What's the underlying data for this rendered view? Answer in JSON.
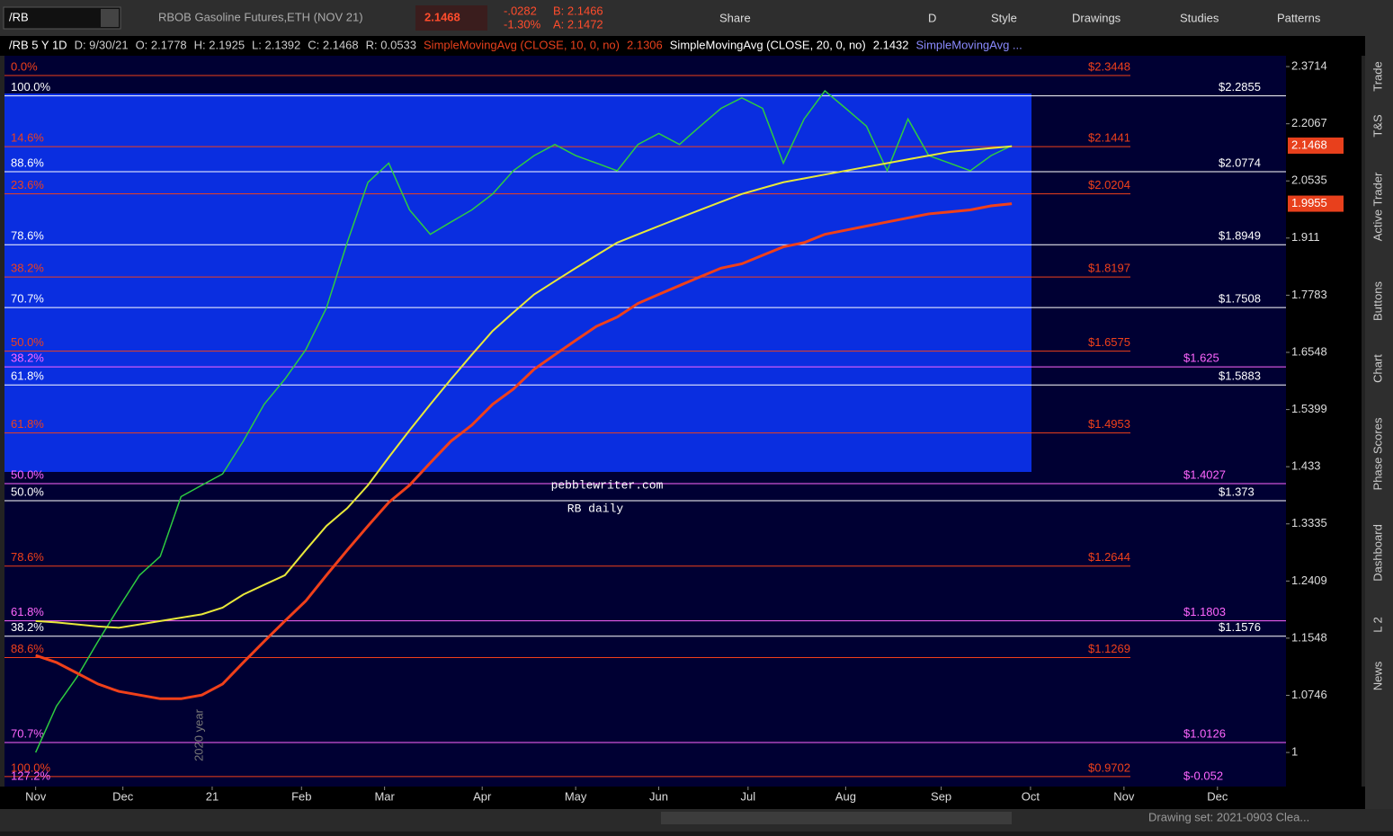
{
  "toolbar": {
    "symbol": "/RB",
    "description": "RBOB Gasoline Futures,ETH (NOV 21)",
    "last": "2.1468",
    "change": "-.0282",
    "change_pct": "-1.30%",
    "bid": "B: 2.1466",
    "ask": "A: 2.1472",
    "buttons": [
      "Share",
      "D",
      "Style",
      "Drawings",
      "Studies",
      "Patterns"
    ]
  },
  "info_bar": [
    {
      "text": "/RB 5 Y 1D",
      "color": "#ffffff"
    },
    {
      "text": "D: 9/30/21",
      "color": "#cccccc"
    },
    {
      "text": "O: 2.1778",
      "color": "#cccccc"
    },
    {
      "text": "H: 2.1925",
      "color": "#cccccc"
    },
    {
      "text": "L: 2.1392",
      "color": "#cccccc"
    },
    {
      "text": "C: 2.1468",
      "color": "#cccccc"
    },
    {
      "text": "R: 0.0533",
      "color": "#cccccc"
    },
    {
      "text": "SimpleMovingAvg (CLOSE, 10, 0, no)",
      "color": "#e8401c"
    },
    {
      "text": "2.1306",
      "color": "#e8401c"
    },
    {
      "text": "SimpleMovingAvg (CLOSE, 20, 0, no)",
      "color": "#ffffff"
    },
    {
      "text": "2.1432",
      "color": "#ffffff"
    },
    {
      "text": "SimpleMovingAvg ...",
      "color": "#8a8aff"
    }
  ],
  "sidebar": [
    "Trade",
    "T&S",
    "Active Trader",
    "Buttons",
    "Chart",
    "Phase Scores",
    "Dashboard",
    "L 2",
    "News"
  ],
  "status_bar": "Drawing set: 2021-0903 Clea...",
  "chart_data": {
    "type": "line",
    "log_scale": true,
    "x": [
      0,
      1,
      2,
      3,
      4,
      5,
      6,
      7,
      8,
      9,
      10,
      11,
      12,
      13,
      14,
      15,
      16,
      17,
      18,
      19,
      20,
      21,
      22,
      23,
      24,
      25,
      26,
      27,
      28,
      29,
      30,
      31,
      32,
      33,
      34,
      35,
      36,
      37,
      38,
      39,
      40,
      41,
      42,
      43,
      44,
      45,
      46,
      47
    ],
    "series": [
      {
        "color": "#2ecc40",
        "width": 1.5,
        "values": [
          1.0,
          1.06,
          1.1,
          1.15,
          1.2,
          1.25,
          1.28,
          1.38,
          1.4,
          1.42,
          1.48,
          1.55,
          1.6,
          1.66,
          1.75,
          1.9,
          2.05,
          2.1,
          1.98,
          1.92,
          1.95,
          1.98,
          2.02,
          2.08,
          2.12,
          2.15,
          2.12,
          2.1,
          2.08,
          2.15,
          2.18,
          2.15,
          2.2,
          2.25,
          2.28,
          2.25,
          2.1,
          2.22,
          2.3,
          2.25,
          2.2,
          2.08,
          2.22,
          2.12,
          2.1,
          2.08,
          2.12,
          2.1468
        ]
      },
      {
        "color": "#e8e83a",
        "width": 2,
        "values": [
          1.18,
          1.178,
          1.175,
          1.172,
          1.17,
          1.175,
          1.18,
          1.185,
          1.19,
          1.2,
          1.22,
          1.235,
          1.25,
          1.29,
          1.33,
          1.36,
          1.4,
          1.45,
          1.5,
          1.55,
          1.6,
          1.65,
          1.7,
          1.74,
          1.78,
          1.81,
          1.84,
          1.87,
          1.9,
          1.92,
          1.94,
          1.96,
          1.98,
          2.0,
          2.02,
          2.035,
          2.05,
          2.06,
          2.07,
          2.08,
          2.09,
          2.1,
          2.11,
          2.12,
          2.13,
          2.135,
          2.14,
          2.145
        ]
      },
      {
        "color": "#f0401a",
        "width": 3,
        "values": [
          1.13,
          1.12,
          1.105,
          1.09,
          1.08,
          1.075,
          1.07,
          1.07,
          1.075,
          1.09,
          1.12,
          1.15,
          1.18,
          1.21,
          1.25,
          1.29,
          1.33,
          1.37,
          1.4,
          1.44,
          1.48,
          1.51,
          1.55,
          1.58,
          1.62,
          1.65,
          1.68,
          1.71,
          1.73,
          1.76,
          1.78,
          1.8,
          1.82,
          1.84,
          1.85,
          1.87,
          1.89,
          1.9,
          1.92,
          1.93,
          1.94,
          1.95,
          1.96,
          1.97,
          1.975,
          1.98,
          1.99,
          1.9955
        ]
      }
    ],
    "xlim": [
      -1.5,
      60.2
    ],
    "xticks": [
      {
        "value": 0,
        "label": "Nov"
      },
      {
        "value": 4.2,
        "label": "Dec"
      },
      {
        "value": 8.5,
        "label": "21"
      },
      {
        "value": 12.8,
        "label": "Feb"
      },
      {
        "value": 16.8,
        "label": "Mar"
      },
      {
        "value": 21.5,
        "label": "Apr"
      },
      {
        "value": 26,
        "label": "May"
      },
      {
        "value": 30,
        "label": "Jun"
      },
      {
        "value": 34.3,
        "label": "Jul"
      },
      {
        "value": 39,
        "label": "Aug"
      },
      {
        "value": 43.6,
        "label": "Sep"
      },
      {
        "value": 47.9,
        "label": "Oct"
      },
      {
        "value": 52.4,
        "label": "Nov"
      },
      {
        "value": 56.9,
        "label": "Dec"
      }
    ],
    "ylim": [
      0.958,
      2.404
    ],
    "yticks": [
      2.3714,
      2.2067,
      2.0535,
      1.911,
      1.7783,
      1.6548,
      1.5399,
      1.433,
      1.3335,
      1.2409,
      1.1548,
      1.0746,
      1
    ],
    "price_labels": [
      {
        "value": 2.1468,
        "color": "#e8401c"
      },
      {
        "value": 1.9955,
        "color": "#e8401c"
      }
    ],
    "levels": [
      {
        "value": 2.3448,
        "label": "$2.3448",
        "pct": "0.0%",
        "color": "#f0401a"
      },
      {
        "value": 2.2855,
        "label": "$2.2855",
        "pct": "100.0%",
        "color": "#ffffff"
      },
      {
        "value": 2.1441,
        "label": "$2.1441",
        "pct": "14.6%",
        "color": "#f0401a"
      },
      {
        "value": 2.0774,
        "label": "$2.0774",
        "pct": "88.6%",
        "color": "#ffffff"
      },
      {
        "value": 2.0204,
        "label": "$2.0204",
        "pct": "23.6%",
        "color": "#f0401a"
      },
      {
        "value": 1.8949,
        "label": "$1.8949",
        "pct": "78.6%",
        "color": "#ffffff"
      },
      {
        "value": 1.8197,
        "label": "$1.8197",
        "pct": "38.2%",
        "color": "#f0401a"
      },
      {
        "value": 1.7508,
        "label": "$1.7508",
        "pct": "70.7%",
        "color": "#ffffff"
      },
      {
        "value": 1.6575,
        "label": "$1.6575",
        "pct": "50.0%",
        "color": "#f0401a"
      },
      {
        "value": 1.625,
        "label": "$1.625",
        "pct": "38.2%",
        "color": "#ff66ff"
      },
      {
        "value": 1.5883,
        "label": "$1.5883",
        "pct": "61.8%",
        "color": "#ffffff"
      },
      {
        "value": 1.4953,
        "label": "$1.4953",
        "pct": "61.8%",
        "color": "#f0401a"
      },
      {
        "value": 1.4027,
        "label": "$1.4027",
        "pct": "50.0%",
        "color": "#ff66ff"
      },
      {
        "value": 1.373,
        "label": "$1.373",
        "pct": "50.0%",
        "color": "#ffffff"
      },
      {
        "value": 1.2644,
        "label": "$1.2644",
        "pct": "78.6%",
        "color": "#f0401a"
      },
      {
        "value": 1.1803,
        "label": "$1.1803",
        "pct": "61.8%",
        "color": "#ff66ff"
      },
      {
        "value": 1.1576,
        "label": "$1.1576",
        "pct": "38.2%",
        "color": "#ffffff"
      },
      {
        "value": 1.1269,
        "label": "$1.1269",
        "pct": "88.6%",
        "color": "#f0401a"
      },
      {
        "value": 1.0126,
        "label": "$1.0126",
        "pct": "70.7%",
        "color": "#ff66ff"
      },
      {
        "value": 0.9702,
        "label": "$0.9702",
        "pct": "100.0%",
        "color": "#f0401a"
      }
    ],
    "annotations": [
      "pebblewriter.com",
      "RB daily",
      "2020 year",
      "$-0.052",
      "127.2%"
    ]
  }
}
